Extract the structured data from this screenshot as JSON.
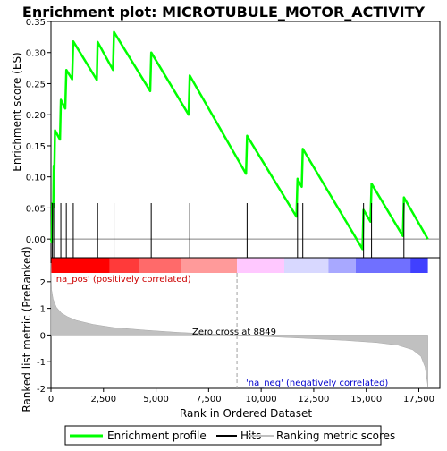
{
  "chart_data": {
    "type": "line",
    "title": "Enrichment plot: MICROTUBULE_MOTOR_ACTIVITY",
    "top_panel": {
      "ylabel": "Enrichment score (ES)",
      "ylim": [
        -0.03,
        0.35
      ],
      "yticks": [
        0.0,
        0.05,
        0.1,
        0.15,
        0.2,
        0.25,
        0.3,
        0.35
      ],
      "ytick_labels": [
        "0.00",
        "0.05",
        "0.10",
        "0.15",
        "0.20",
        "0.25",
        "0.30",
        "0.35"
      ],
      "series": [
        {
          "name": "Enrichment profile",
          "color": "#00ff00",
          "points": [
            [
              0,
              0.0
            ],
            [
              40,
              -0.005
            ],
            [
              60,
              0.057
            ],
            [
              110,
              0.05
            ],
            [
              130,
              0.118
            ],
            [
              160,
              0.112
            ],
            [
              190,
              0.175
            ],
            [
              430,
              0.16
            ],
            [
              470,
              0.224
            ],
            [
              680,
              0.21
            ],
            [
              730,
              0.272
            ],
            [
              1010,
              0.257
            ],
            [
              1060,
              0.318
            ],
            [
              2180,
              0.256
            ],
            [
              2220,
              0.317
            ],
            [
              2950,
              0.272
            ],
            [
              3000,
              0.333
            ],
            [
              4720,
              0.238
            ],
            [
              4770,
              0.3
            ],
            [
              6550,
              0.2
            ],
            [
              6600,
              0.263
            ],
            [
              9280,
              0.105
            ],
            [
              9330,
              0.166
            ],
            [
              11680,
              0.036
            ],
            [
              11730,
              0.097
            ],
            [
              11930,
              0.084
            ],
            [
              11980,
              0.145
            ],
            [
              14820,
              -0.016
            ],
            [
              14870,
              0.047
            ],
            [
              15200,
              0.028
            ],
            [
              15250,
              0.089
            ],
            [
              16740,
              0.005
            ],
            [
              16790,
              0.067
            ],
            [
              17930,
              0.0
            ]
          ]
        }
      ]
    },
    "hits": {
      "name": "Hits",
      "positions": [
        60,
        130,
        190,
        470,
        730,
        1060,
        2220,
        3000,
        4770,
        6600,
        9330,
        11730,
        11980,
        14870,
        15250,
        16790
      ]
    },
    "bottom_panel": {
      "ylabel": "Ranked list metric (PreRanked)",
      "ylim": [
        -2.0,
        2.9
      ],
      "yticks": [
        -2,
        -1,
        0,
        1,
        2
      ],
      "ytick_labels": [
        "-2",
        "-1",
        "0",
        "1",
        "2"
      ],
      "series_name": "Ranking metric scores",
      "metric_profile": [
        [
          0,
          2.7
        ],
        [
          30,
          1.7
        ],
        [
          100,
          1.35
        ],
        [
          250,
          1.05
        ],
        [
          500,
          0.82
        ],
        [
          800,
          0.68
        ],
        [
          1200,
          0.55
        ],
        [
          2000,
          0.4
        ],
        [
          3000,
          0.28
        ],
        [
          4500,
          0.18
        ],
        [
          6000,
          0.1
        ],
        [
          7500,
          0.04
        ],
        [
          8849,
          0.0
        ],
        [
          10000,
          -0.05
        ],
        [
          12000,
          -0.12
        ],
        [
          14000,
          -0.2
        ],
        [
          15500,
          -0.28
        ],
        [
          16500,
          -0.38
        ],
        [
          17200,
          -0.55
        ],
        [
          17600,
          -0.8
        ],
        [
          17800,
          -1.2
        ],
        [
          17900,
          -1.75
        ],
        [
          17930,
          -1.95
        ]
      ],
      "zero_cross_label": "Zero cross at 8849",
      "zero_cross": 8849,
      "pos_label": "'na_pos' (positively correlated)",
      "neg_label": "'na_neg' (negatively correlated)"
    },
    "xlabel": "Rank in Ordered Dataset",
    "xlim": [
      0,
      18500
    ],
    "xticks": [
      0,
      2500,
      5000,
      7500,
      10000,
      12500,
      15000,
      17500
    ],
    "xtick_labels": [
      "0",
      "2,500",
      "5,000",
      "7,500",
      "10,000",
      "12,500",
      "15,000",
      "17,500"
    ],
    "n_genes": 17930,
    "legend": {
      "placement": "bottom",
      "entries": [
        "Enrichment profile",
        "Hits",
        "Ranking metric scores"
      ]
    }
  }
}
